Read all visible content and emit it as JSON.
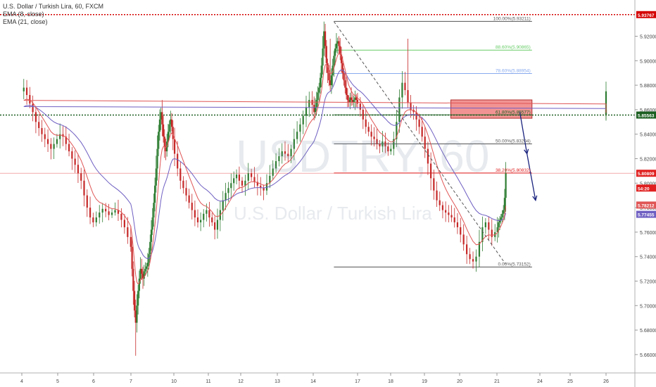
{
  "legend": {
    "symbol": "U.S. Dollar / Turkish Lira, 60, FXCM",
    "ema8": "EMA (8, close)",
    "ema21": "EMA (21, close)"
  },
  "watermark": {
    "ticker": "USDTRY, 60",
    "name": "U.S. Dollar / Turkish Lira"
  },
  "colors": {
    "up": "#2e7d32",
    "down": "#c62828",
    "ema8": "#e05555",
    "ema21": "#6e5fc2",
    "fib_gray": "#555555",
    "fib_green": "#66cc66",
    "fib_blue": "#88aaee",
    "fib_red": "#e02020",
    "support": "#1b5e20",
    "resistance_top": "#d40000",
    "zone": "#f08080",
    "arrow": "#1a237e"
  },
  "chart_data": {
    "type": "candlestick",
    "symbol": "USDTRY",
    "timeframe": "60",
    "ylim": [
      5.645,
      5.945
    ],
    "yticks": [
      "5.92000",
      "5.90000",
      "5.88000",
      "5.86000",
      "5.84000",
      "5.82000",
      "5.80000",
      "5.78000",
      "5.76000",
      "5.74000",
      "5.72000",
      "5.70000",
      "5.68000",
      "5.66000"
    ],
    "xticks": [
      "4",
      "5",
      "6",
      "7",
      "10",
      "11",
      "12",
      "13",
      "14",
      "17",
      "18",
      "19",
      "20",
      "21",
      "24",
      "25",
      "26"
    ],
    "price_tags": [
      {
        "value": 5.93767,
        "label": "5.93767",
        "color": "#d40000",
        "role": "resistance"
      },
      {
        "value": 5.85563,
        "label": "5.85563",
        "color": "#1b5e20",
        "role": "support"
      },
      {
        "value": 5.80809,
        "label": "5.80809",
        "color": "#e02020",
        "role": "last"
      },
      {
        "value": 5.796,
        "label": "54:20",
        "color": "#e02020",
        "role": "countdown"
      },
      {
        "value": 5.78212,
        "label": "5.78212",
        "color": "#e05555",
        "role": "ema8"
      },
      {
        "value": 5.77455,
        "label": "5.77455",
        "color": "#6e5fc2",
        "role": "ema21"
      }
    ],
    "fib_levels": [
      {
        "label": "100.00%(5.93211)",
        "value": 5.93211,
        "color": "#555555"
      },
      {
        "label": "88.60%(5.90865)",
        "value": 5.90865,
        "color": "#66cc66"
      },
      {
        "label": "78.60%(5.88954)",
        "value": 5.88954,
        "color": "#88aaee"
      },
      {
        "label": "61.80%(5.85577)",
        "value": 5.85577,
        "color": "#1b5e20"
      },
      {
        "label": "50.00%(5.83204)",
        "value": 5.83204,
        "color": "#555555"
      },
      {
        "label": "38.20%(5.80832)",
        "value": 5.80832,
        "color": "#e02020"
      },
      {
        "label": "0.00%(5.73152)",
        "value": 5.73152,
        "color": "#555555"
      }
    ],
    "zone": {
      "top": 5.868,
      "bottom": 5.853
    },
    "trend_line": {
      "from": {
        "x": 15.4,
        "y": 5.932
      },
      "to": {
        "x": 21.6,
        "y": 5.734
      }
    },
    "forecast_arrow": [
      {
        "x": 22.6,
        "y": 5.858
      },
      {
        "x": 23.1,
        "y": 5.824
      },
      {
        "x": 23.7,
        "y": 5.786
      }
    ],
    "closes": [
      5.858,
      5.856,
      5.86,
      5.864,
      5.87,
      5.875,
      5.878,
      5.872,
      5.865,
      5.858,
      5.85,
      5.845,
      5.84,
      5.836,
      5.832,
      5.828,
      5.832,
      5.836,
      5.84,
      5.838,
      5.832,
      5.826,
      5.82,
      5.815,
      5.808,
      5.802,
      5.79,
      5.78,
      5.772,
      5.768,
      5.772,
      5.776,
      5.779,
      5.777,
      5.774,
      5.776,
      5.778,
      5.775,
      5.77,
      5.764,
      5.756,
      5.748,
      5.73,
      5.712,
      5.696,
      5.686,
      5.7,
      5.712,
      5.722,
      5.73,
      5.726,
      5.722,
      5.728,
      5.73,
      5.732,
      5.735,
      5.742,
      5.752,
      5.762,
      5.772,
      5.784,
      5.798,
      5.812,
      5.828,
      5.842,
      5.852,
      5.858,
      5.848,
      5.838,
      5.83,
      5.826,
      5.834,
      5.842,
      5.848,
      5.852,
      5.846,
      5.836,
      5.824,
      5.812,
      5.802,
      5.796,
      5.79,
      5.784,
      5.778,
      5.772,
      5.768,
      5.77,
      5.775,
      5.778,
      5.772,
      5.768,
      5.762,
      5.77,
      5.778,
      5.786,
      5.792,
      5.796,
      5.8,
      5.804,
      5.807,
      5.802,
      5.798,
      5.802,
      5.808,
      5.805,
      5.801,
      5.798,
      5.796,
      5.794,
      5.8,
      5.806,
      5.812,
      5.818,
      5.822,
      5.826,
      5.824,
      5.822,
      5.828,
      5.836,
      5.842,
      5.848,
      5.855,
      5.862,
      5.868,
      5.864,
      5.858,
      5.862,
      5.868,
      5.874,
      5.878,
      5.886,
      5.896,
      5.91,
      5.924,
      5.912,
      5.898,
      5.89,
      5.884,
      5.88,
      5.888,
      5.896,
      5.904,
      5.91,
      5.914,
      5.916,
      5.912,
      5.905,
      5.898,
      5.89,
      5.884,
      5.878,
      5.872,
      5.868,
      5.866,
      5.87,
      5.868,
      5.866,
      5.868,
      5.87,
      5.868,
      5.865,
      5.86,
      5.852,
      5.846,
      5.842,
      5.838,
      5.836,
      5.832,
      5.83,
      5.834,
      5.83,
      5.826,
      5.828,
      5.836,
      5.85,
      5.87,
      5.882,
      5.876,
      5.866,
      5.86,
      5.858,
      5.852,
      5.846,
      5.838,
      5.828,
      5.816,
      5.804,
      5.794,
      5.786,
      5.782,
      5.778,
      5.776,
      5.774,
      5.772,
      5.768,
      5.764,
      5.758,
      5.75,
      5.742,
      5.738,
      5.736,
      5.74,
      5.752,
      5.764,
      5.768,
      5.762,
      5.756,
      5.76,
      5.764,
      5.768,
      5.77,
      5.772,
      5.775,
      5.778,
      5.788,
      5.808
    ]
  }
}
